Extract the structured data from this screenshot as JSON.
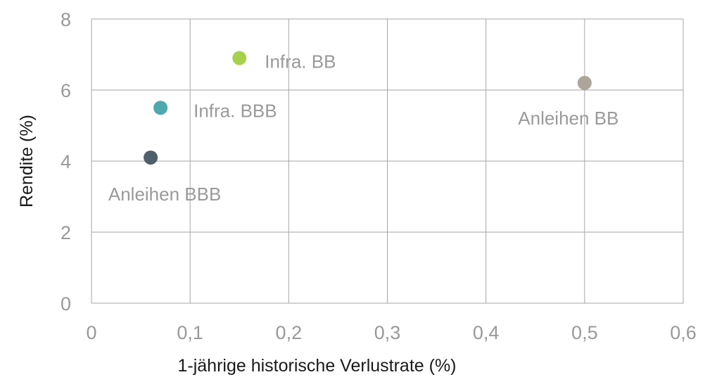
{
  "chart_data": {
    "type": "scatter",
    "title": "",
    "xlabel": "1-jährige historische Verlustrate (%)",
    "ylabel": "Rendite (%)",
    "xlim": [
      0,
      0.6
    ],
    "ylim": [
      0,
      8
    ],
    "x_ticks": [
      0,
      0.1,
      0.2,
      0.3,
      0.4,
      0.5,
      0.6
    ],
    "x_tick_labels": [
      "0",
      "0,1",
      "0,2",
      "0,3",
      "0,4",
      "0,5",
      "0,6"
    ],
    "y_ticks": [
      0,
      2,
      4,
      6,
      8
    ],
    "y_tick_labels": [
      "0",
      "2",
      "4",
      "6",
      "8"
    ],
    "grid": true,
    "legend": "none",
    "points": [
      {
        "label": "Infra. BB",
        "x": 0.15,
        "y": 6.9,
        "color": "#a5d24a"
      },
      {
        "label": "Infra. BBB",
        "x": 0.07,
        "y": 5.5,
        "color": "#4fa8ad"
      },
      {
        "label": "Anleihen BBB",
        "x": 0.06,
        "y": 4.1,
        "color": "#4f5f6b"
      },
      {
        "label": "Anleihen BB",
        "x": 0.5,
        "y": 6.2,
        "color": "#ada49a"
      }
    ]
  }
}
